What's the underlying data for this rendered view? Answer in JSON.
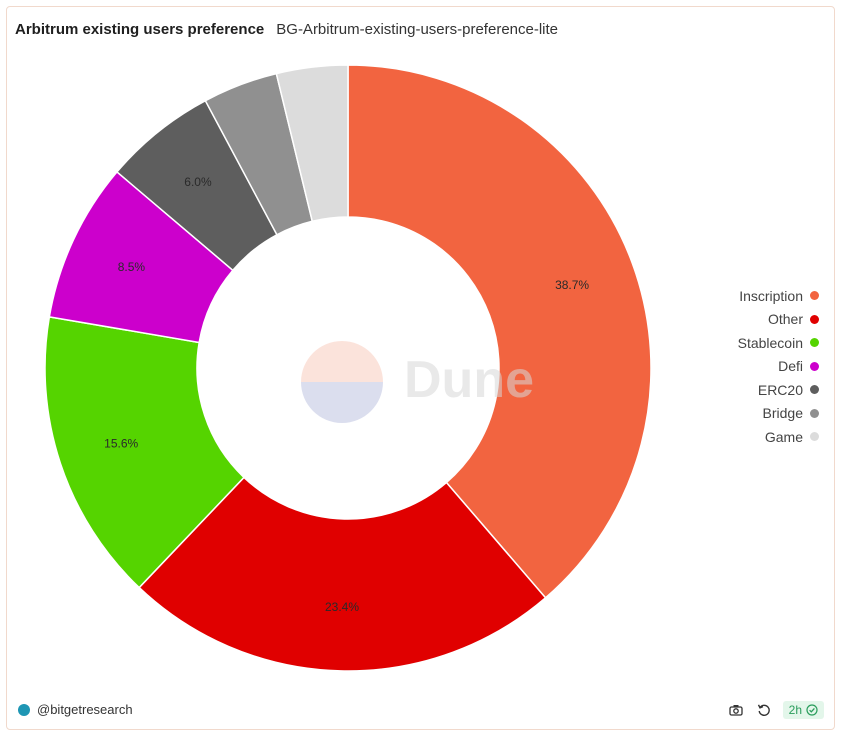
{
  "header": {
    "title": "Arbitrum existing users preference",
    "subtitle": "BG-Arbitrum-existing-users-preference-lite"
  },
  "chart_data": {
    "type": "pie",
    "donut": true,
    "categories": [
      "Inscription",
      "Other",
      "Stablecoin",
      "Defi",
      "ERC20",
      "Bridge",
      "Game"
    ],
    "values": [
      38.7,
      23.4,
      15.6,
      8.5,
      6.0,
      4.0,
      3.8
    ],
    "data_labels": [
      "38.7%",
      "23.4%",
      "15.6%",
      "8.5%",
      "6.0%",
      "",
      ""
    ],
    "colors": [
      "#f26440",
      "#e00000",
      "#55d400",
      "#cc00cc",
      "#5e5e5e",
      "#909090",
      "#dcdcdc"
    ],
    "legend_position": "right"
  },
  "watermark": {
    "text": "Dune"
  },
  "footer": {
    "author": "@bitgetresearch",
    "age": "2h"
  },
  "icons": {
    "camera": "camera-icon",
    "refresh": "refresh-icon",
    "check": "check-circle-icon"
  }
}
